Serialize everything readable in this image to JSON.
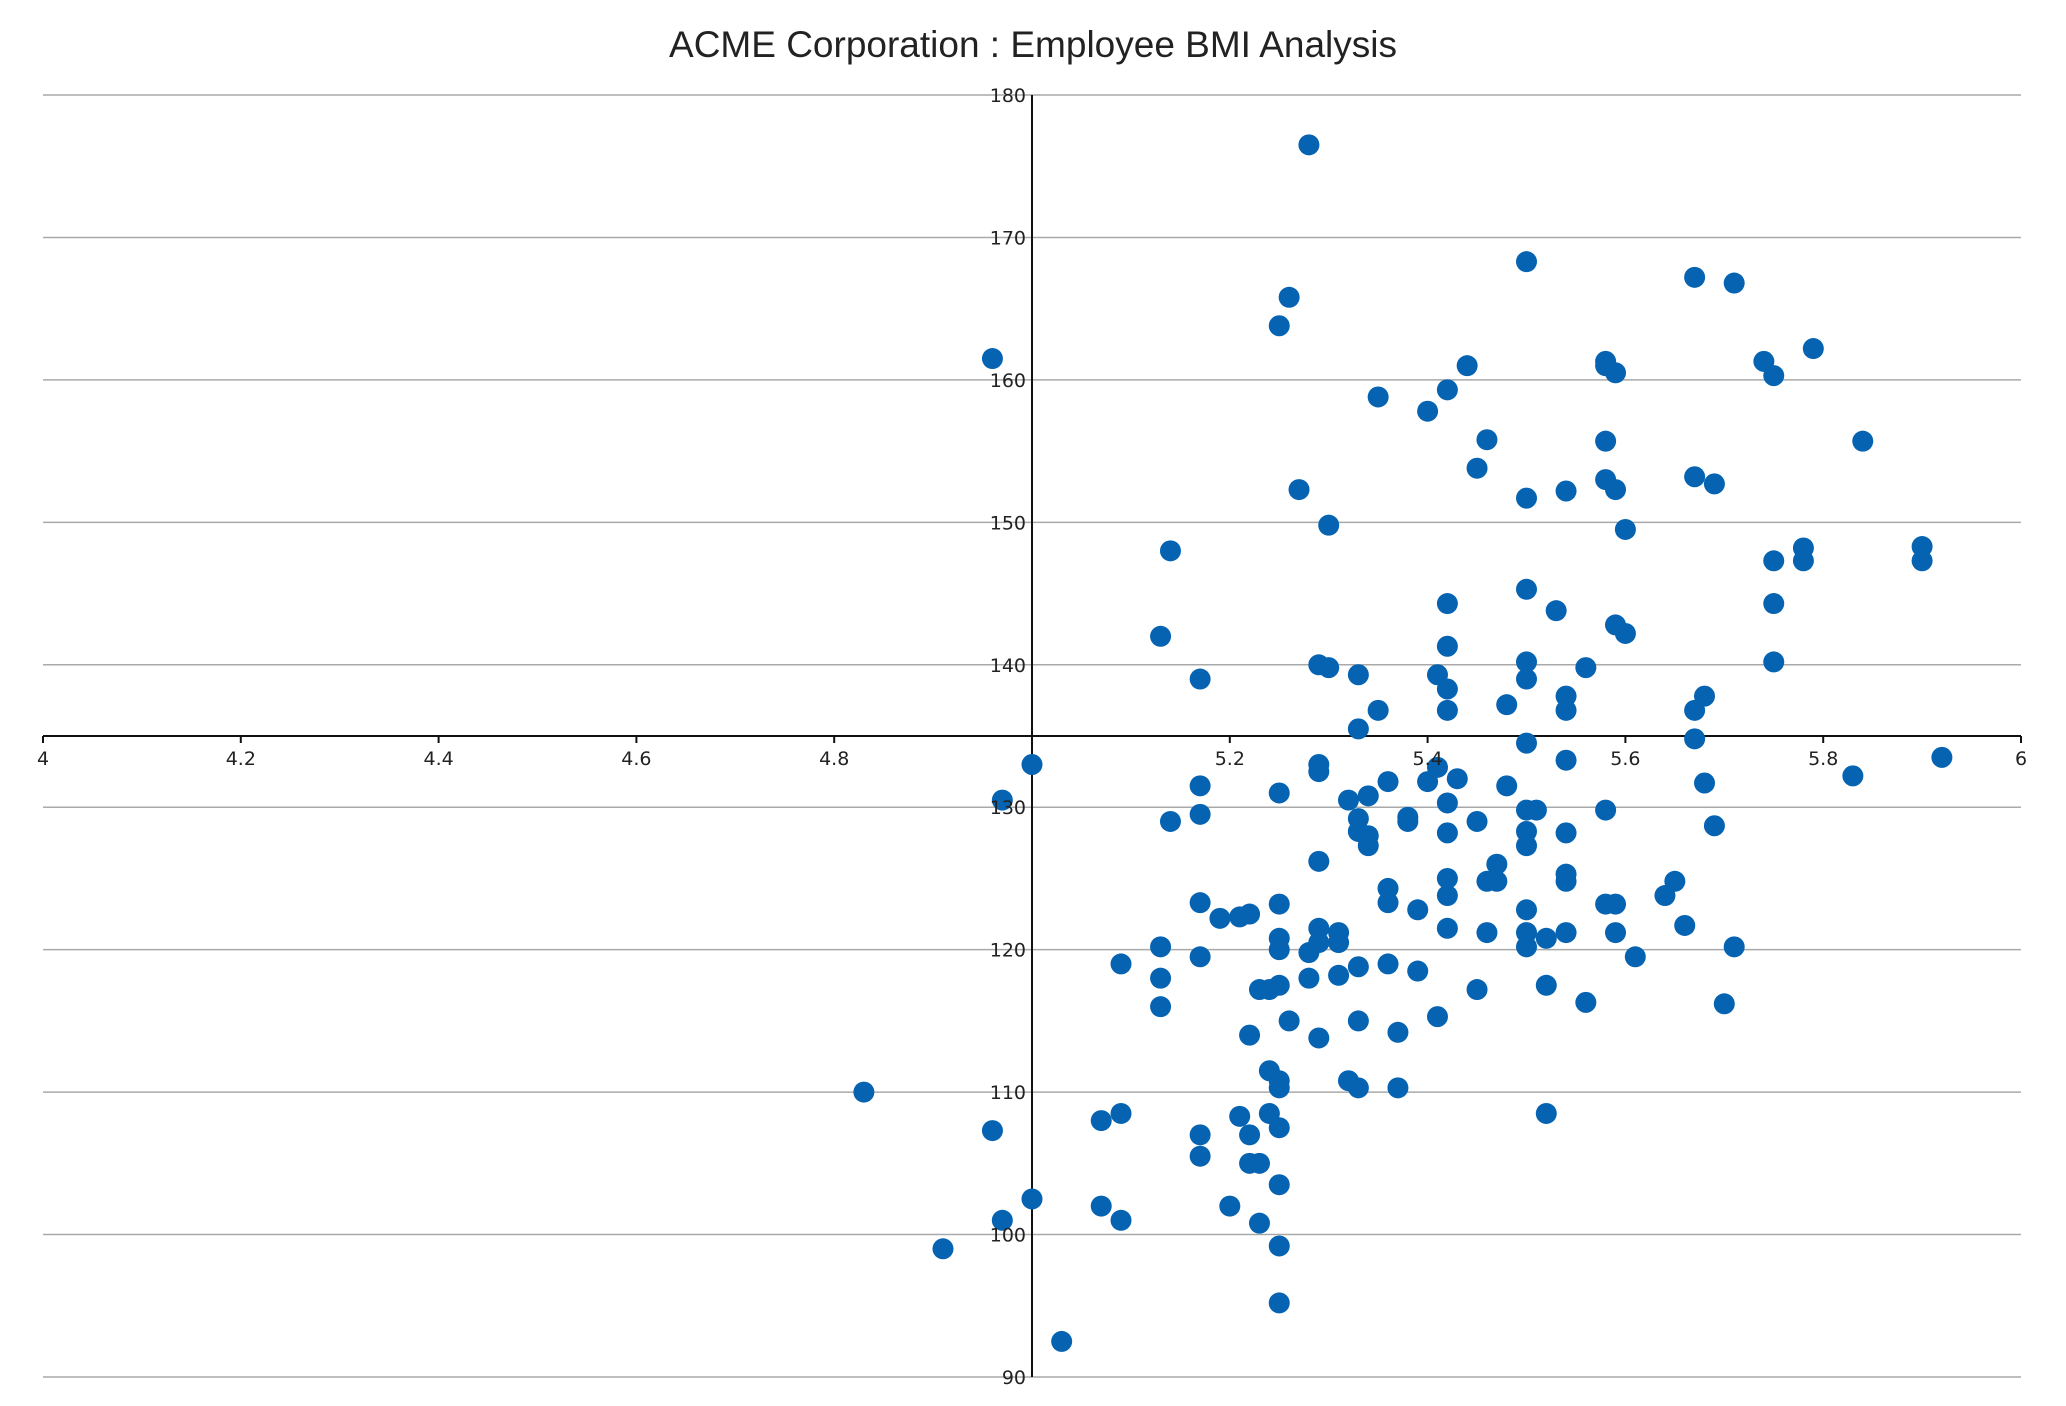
{
  "chart_data": {
    "type": "scatter",
    "title": "ACME Corporation : Employee BMI Analysis",
    "xlabel": "",
    "ylabel": "",
    "xlim": [
      4,
      6
    ],
    "ylim": [
      90,
      180
    ],
    "x_ticks": [
      4,
      4.2,
      4.4,
      4.6,
      4.8,
      5,
      5.2,
      5.4,
      5.6,
      5.8,
      6
    ],
    "x_tick_labels": [
      "4",
      "4.2",
      "4.4",
      "4.6",
      "4.8",
      "",
      "5.2",
      "5.4",
      "5.6",
      "5.8",
      "6"
    ],
    "y_ticks": [
      90,
      100,
      110,
      120,
      130,
      140,
      150,
      160,
      170,
      180
    ],
    "y_tick_labels": [
      "90",
      "100",
      "110",
      "120",
      "130",
      "140",
      "150",
      "160",
      "170",
      "180"
    ],
    "x_axis_crosses_y": 135,
    "y_axis_crosses_x": 5,
    "grid": true,
    "marker_color": "#0563b2",
    "series": [
      {
        "values": [
          [
            4.83,
            110
          ],
          [
            4.91,
            99
          ],
          [
            4.96,
            107.3
          ],
          [
            4.97,
            101
          ],
          [
            4.97,
            130.5
          ],
          [
            4.96,
            161.5
          ],
          [
            5.0,
            102.5
          ],
          [
            5.0,
            133
          ],
          [
            5.03,
            92.5
          ],
          [
            5.07,
            102
          ],
          [
            5.07,
            108
          ],
          [
            5.09,
            108.5
          ],
          [
            5.09,
            101
          ],
          [
            5.09,
            119
          ],
          [
            5.13,
            118
          ],
          [
            5.13,
            116
          ],
          [
            5.13,
            120.2
          ],
          [
            5.13,
            142
          ],
          [
            5.14,
            129
          ],
          [
            5.14,
            148
          ],
          [
            5.17,
            105.5
          ],
          [
            5.17,
            139
          ],
          [
            5.17,
            107
          ],
          [
            5.17,
            119.5
          ],
          [
            5.17,
            123.3
          ],
          [
            5.17,
            129.5
          ],
          [
            5.17,
            131.5
          ],
          [
            5.19,
            122.2
          ],
          [
            5.2,
            102
          ],
          [
            5.21,
            122.3
          ],
          [
            5.21,
            108.3
          ],
          [
            5.22,
            107
          ],
          [
            5.22,
            105
          ],
          [
            5.22,
            114
          ],
          [
            5.22,
            122.5
          ],
          [
            5.23,
            100.8
          ],
          [
            5.23,
            117.2
          ],
          [
            5.23,
            105
          ],
          [
            5.24,
            111.5
          ],
          [
            5.24,
            108.5
          ],
          [
            5.24,
            117.2
          ],
          [
            5.25,
            110.3
          ],
          [
            5.25,
            110.8
          ],
          [
            5.25,
            107.5
          ],
          [
            5.25,
            103.5
          ],
          [
            5.25,
            99.2
          ],
          [
            5.25,
            95.2
          ],
          [
            5.25,
            117.5
          ],
          [
            5.25,
            120
          ],
          [
            5.25,
            120.8
          ],
          [
            5.25,
            123.2
          ],
          [
            5.25,
            131
          ],
          [
            5.25,
            163.8
          ],
          [
            5.26,
            115
          ],
          [
            5.26,
            165.8
          ],
          [
            5.27,
            152.3
          ],
          [
            5.28,
            176.5
          ],
          [
            5.28,
            119.8
          ],
          [
            5.28,
            118
          ],
          [
            5.29,
            113.8
          ],
          [
            5.29,
            121.5
          ],
          [
            5.29,
            120.5
          ],
          [
            5.29,
            126.2
          ],
          [
            5.29,
            132.5
          ],
          [
            5.29,
            133
          ],
          [
            5.29,
            140
          ],
          [
            5.3,
            149.8
          ],
          [
            5.3,
            139.8
          ],
          [
            5.31,
            121.2
          ],
          [
            5.31,
            120.5
          ],
          [
            5.31,
            118.2
          ],
          [
            5.32,
            110.8
          ],
          [
            5.32,
            130.5
          ],
          [
            5.33,
            115
          ],
          [
            5.33,
            110.3
          ],
          [
            5.33,
            118.8
          ],
          [
            5.33,
            128.3
          ],
          [
            5.33,
            129.2
          ],
          [
            5.33,
            135.5
          ],
          [
            5.33,
            139.3
          ],
          [
            5.34,
            127.3
          ],
          [
            5.34,
            128
          ],
          [
            5.34,
            130.8
          ],
          [
            5.35,
            136.8
          ],
          [
            5.35,
            158.8
          ],
          [
            5.36,
            119
          ],
          [
            5.36,
            123.3
          ],
          [
            5.36,
            124.3
          ],
          [
            5.36,
            131.8
          ],
          [
            5.37,
            110.3
          ],
          [
            5.37,
            114.2
          ],
          [
            5.38,
            129
          ],
          [
            5.38,
            129.3
          ],
          [
            5.39,
            118.5
          ],
          [
            5.39,
            122.8
          ],
          [
            5.4,
            157.8
          ],
          [
            5.4,
            131.8
          ],
          [
            5.41,
            115.3
          ],
          [
            5.41,
            132.8
          ],
          [
            5.41,
            139.3
          ],
          [
            5.42,
            121.5
          ],
          [
            5.42,
            123.8
          ],
          [
            5.42,
            125
          ],
          [
            5.42,
            128.2
          ],
          [
            5.42,
            130.3
          ],
          [
            5.42,
            136.8
          ],
          [
            5.42,
            138.3
          ],
          [
            5.42,
            141.3
          ],
          [
            5.42,
            144.3
          ],
          [
            5.42,
            159.3
          ],
          [
            5.43,
            132
          ],
          [
            5.44,
            161
          ],
          [
            5.45,
            117.2
          ],
          [
            5.45,
            153.8
          ],
          [
            5.45,
            129
          ],
          [
            5.46,
            121.2
          ],
          [
            5.46,
            124.8
          ],
          [
            5.46,
            155.8
          ],
          [
            5.47,
            124.8
          ],
          [
            5.47,
            126
          ],
          [
            5.48,
            131.5
          ],
          [
            5.48,
            137.2
          ],
          [
            5.5,
            120.2
          ],
          [
            5.5,
            121.2
          ],
          [
            5.5,
            122.8
          ],
          [
            5.5,
            127.3
          ],
          [
            5.5,
            128.3
          ],
          [
            5.5,
            129.8
          ],
          [
            5.5,
            134.5
          ],
          [
            5.5,
            139
          ],
          [
            5.5,
            140.2
          ],
          [
            5.5,
            145.3
          ],
          [
            5.5,
            151.7
          ],
          [
            5.5,
            168.3
          ],
          [
            5.51,
            129.8
          ],
          [
            5.52,
            108.5
          ],
          [
            5.52,
            117.5
          ],
          [
            5.52,
            120.8
          ],
          [
            5.53,
            143.8
          ],
          [
            5.54,
            121.2
          ],
          [
            5.54,
            124.8
          ],
          [
            5.54,
            125.3
          ],
          [
            5.54,
            128.2
          ],
          [
            5.54,
            133.3
          ],
          [
            5.54,
            136.8
          ],
          [
            5.54,
            137.8
          ],
          [
            5.54,
            152.2
          ],
          [
            5.56,
            116.3
          ],
          [
            5.56,
            139.8
          ],
          [
            5.58,
            123.2
          ],
          [
            5.58,
            129.8
          ],
          [
            5.58,
            153
          ],
          [
            5.58,
            155.7
          ],
          [
            5.58,
            161
          ],
          [
            5.58,
            161.3
          ],
          [
            5.59,
            123.2
          ],
          [
            5.59,
            121.2
          ],
          [
            5.59,
            152.3
          ],
          [
            5.59,
            160.5
          ],
          [
            5.59,
            142.8
          ],
          [
            5.6,
            142.2
          ],
          [
            5.6,
            149.5
          ],
          [
            5.61,
            119.5
          ],
          [
            5.64,
            123.8
          ],
          [
            5.65,
            124.8
          ],
          [
            5.66,
            121.7
          ],
          [
            5.67,
            134.8
          ],
          [
            5.67,
            136.8
          ],
          [
            5.67,
            153.2
          ],
          [
            5.67,
            167.2
          ],
          [
            5.68,
            137.8
          ],
          [
            5.68,
            131.7
          ],
          [
            5.69,
            152.7
          ],
          [
            5.69,
            128.7
          ],
          [
            5.7,
            116.2
          ],
          [
            5.71,
            120.2
          ],
          [
            5.71,
            166.8
          ],
          [
            5.74,
            161.3
          ],
          [
            5.75,
            140.2
          ],
          [
            5.75,
            144.3
          ],
          [
            5.75,
            147.3
          ],
          [
            5.75,
            160.3
          ],
          [
            5.78,
            147.3
          ],
          [
            5.78,
            148.2
          ],
          [
            5.79,
            162.2
          ],
          [
            5.83,
            132.2
          ],
          [
            5.84,
            155.7
          ],
          [
            5.9,
            147.3
          ],
          [
            5.9,
            148.3
          ],
          [
            5.92,
            133.5
          ]
        ]
      }
    ]
  }
}
